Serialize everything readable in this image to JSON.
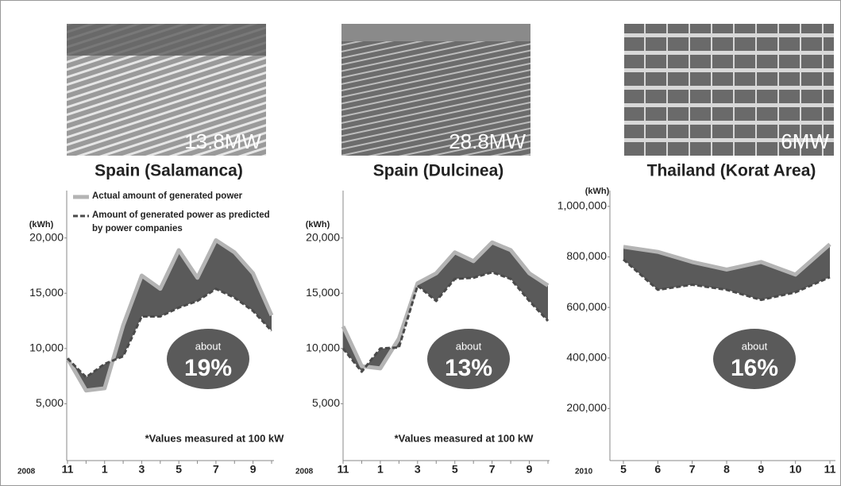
{
  "chart_data": [
    {
      "type": "area-difference",
      "title": "Spain (Salamanca)",
      "capacity": "13.8MW",
      "y_unit": "(kWh)",
      "year_label": "2008",
      "categories": [
        "11",
        null,
        "1",
        null,
        "3",
        null,
        "5",
        null,
        "7",
        null,
        "9",
        null
      ],
      "series": [
        {
          "name": "Actual amount of generated power",
          "color": "#b4b4b4",
          "values": [
            9100,
            6200,
            6400,
            12100,
            16600,
            15400,
            18900,
            16400,
            19800,
            18700,
            16800,
            13000
          ]
        },
        {
          "name": "Amount of generated power as predicted by power companies",
          "color": "#4a4a4a",
          "values": [
            9100,
            7400,
            8600,
            9300,
            12900,
            12900,
            13700,
            14300,
            15400,
            14600,
            13400,
            11600
          ]
        }
      ],
      "fill_color": "#5a5a5a",
      "ylim": [
        0,
        24000
      ],
      "yticks": [
        {
          "value": 5000,
          "label": "5,000"
        },
        {
          "value": 10000,
          "label": "10,000"
        },
        {
          "value": 15000,
          "label": "15,000"
        },
        {
          "value": 20000,
          "label": "20,000"
        }
      ],
      "badge": {
        "label": "about",
        "value": "19%"
      },
      "note": "*Values measured at 100 kW",
      "legend": true
    },
    {
      "type": "area-difference",
      "title": "Spain (Dulcinea)",
      "capacity": "28.8MW",
      "y_unit": "(kWh)",
      "year_label": "2008",
      "categories": [
        "11",
        null,
        "1",
        null,
        "3",
        null,
        "5",
        null,
        "7",
        null,
        "9",
        null
      ],
      "series": [
        {
          "name": "Actual amount of generated power",
          "color": "#b4b4b4",
          "values": [
            12000,
            8400,
            8200,
            10900,
            15900,
            16800,
            18700,
            17900,
            19600,
            18900,
            16800,
            15700
          ]
        },
        {
          "name": "Amount of generated power as predicted by power companies",
          "color": "#4a4a4a",
          "values": [
            10000,
            7900,
            10000,
            10100,
            15700,
            14300,
            16300,
            16400,
            16900,
            16300,
            14300,
            12500
          ]
        }
      ],
      "fill_color": "#5a5a5a",
      "ylim": [
        0,
        24000
      ],
      "yticks": [
        {
          "value": 5000,
          "label": "5,000"
        },
        {
          "value": 10000,
          "label": "10,000"
        },
        {
          "value": 15000,
          "label": "15,000"
        },
        {
          "value": 20000,
          "label": "20,000"
        }
      ],
      "badge": {
        "label": "about",
        "value": "13%"
      },
      "note": "*Values measured at 100 kW",
      "legend": false
    },
    {
      "type": "area-difference",
      "title": "Thailand (Korat Area)",
      "capacity": "6MW",
      "y_unit": "(kWh)",
      "year_label": "2010",
      "categories": [
        "5",
        "6",
        "7",
        "8",
        "9",
        "10",
        "11"
      ],
      "series": [
        {
          "name": "Actual amount of generated power",
          "color": "#b4b4b4",
          "values": [
            840000,
            820000,
            780000,
            750000,
            780000,
            730000,
            850000
          ]
        },
        {
          "name": "Amount of generated power as predicted by power companies",
          "color": "#4a4a4a",
          "values": [
            790000,
            670000,
            690000,
            670000,
            630000,
            660000,
            720000
          ]
        }
      ],
      "fill_color": "#5a5a5a",
      "ylim": [
        0,
        1050000
      ],
      "yticks": [
        {
          "value": 200000,
          "label": "200,000"
        },
        {
          "value": 400000,
          "label": "400,000"
        },
        {
          "value": 600000,
          "label": "600,000"
        },
        {
          "value": 800000,
          "label": "800,000"
        },
        {
          "value": 1000000,
          "label": "1,000,000"
        }
      ],
      "badge": {
        "label": "about",
        "value": "16%"
      },
      "legend": false
    }
  ]
}
